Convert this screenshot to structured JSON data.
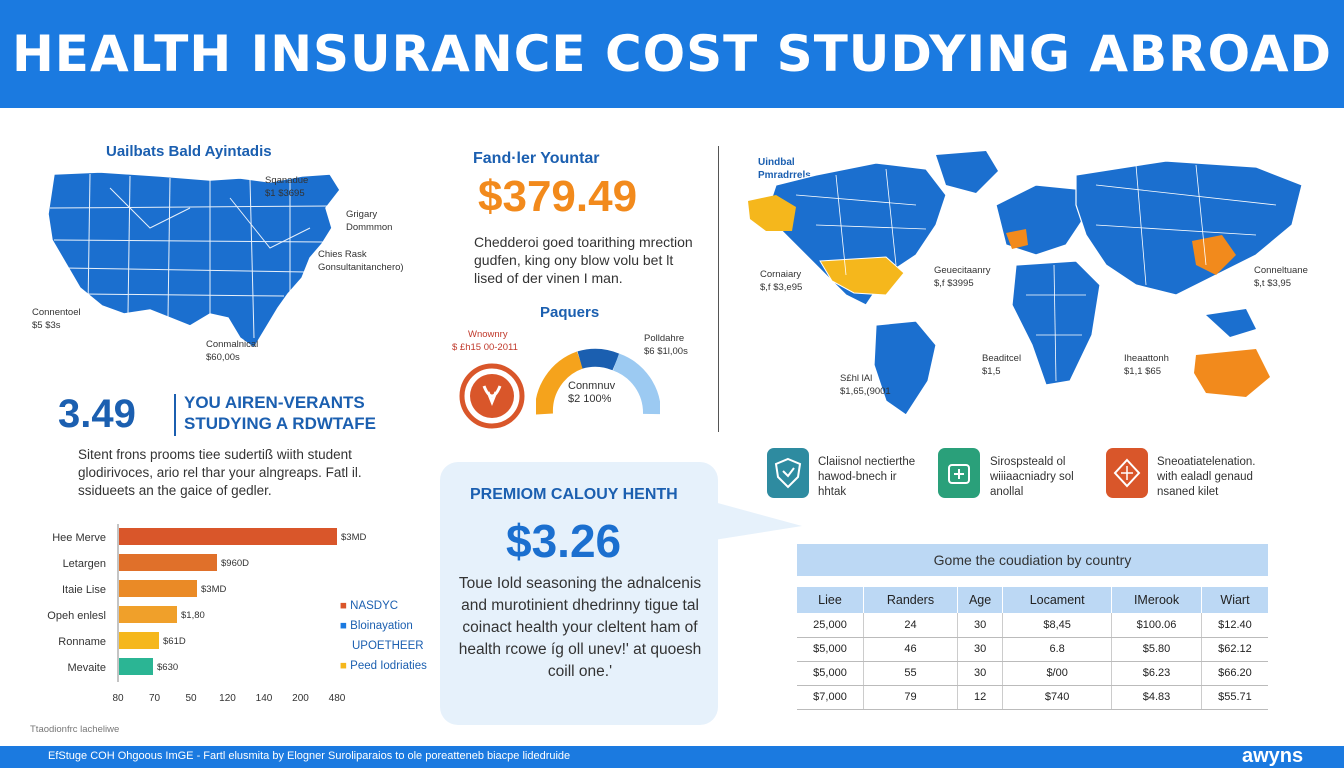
{
  "header": {
    "title": "HEALTH INSURANCE COST STUDYING ABROAD"
  },
  "us_map": {
    "title": "Uailbats Bald Ayintadis",
    "labels": [
      {
        "name": "Sqanadue",
        "value": "$1 $3695"
      },
      {
        "name": "Grigary Dommmon",
        "value": ""
      },
      {
        "name": "Chies Rask",
        "value": "Gonsultanitanchero)"
      },
      {
        "name": "Connentoel",
        "value": "$5 $3s"
      },
      {
        "name": "Conmalnical",
        "value": "$60,00s"
      }
    ]
  },
  "feature": {
    "label": "Fand·ler Yountar",
    "price": "$379.49",
    "description": "Chedderoi goed toarithing mrection gudfen, king ony blow volu bet lt lised of der vinen I man."
  },
  "paquers": {
    "title": "Paquers",
    "left_label": "Wnownry",
    "left_value": "$ £h15 00-2011",
    "right_label": "Polldahre",
    "right_value": "$6 $1l,00s",
    "center_label": "Conmnuv",
    "center_value": "$2 100%"
  },
  "world_map": {
    "title": "Uindbal Pmradrrels",
    "labels": [
      {
        "name": "Cornaiary",
        "value": "$,f $3,e95"
      },
      {
        "name": "Geuecitaanry",
        "value": "$,f $3995"
      },
      {
        "name": "Conneltuane",
        "value": "$,t $3,95"
      },
      {
        "name": "S£hl lAl",
        "value": "$1,65,(9001"
      },
      {
        "name": "Beaditcel",
        "value": "$1,5"
      },
      {
        "name": "Iheaattonh",
        "value": "$1,1 $65"
      }
    ]
  },
  "big_stat": {
    "value": "3.49",
    "heading_line1": "YOU AIREN-VERANTS",
    "heading_line2": "STUDYING A RDWTAFE",
    "text": "Sitent frons prooms tiee sudertiß wiith student glodirivoces, ario rel thar your alngreaps. Fatl il. ssidueets an the gaice of gedler."
  },
  "bar_chart": {
    "items": [
      {
        "label": "Hee Merve",
        "value_label": "$3MD"
      },
      {
        "label": "Letargen",
        "value_label": "$960D"
      },
      {
        "label": "Itaie Lise",
        "value_label": "$3MD"
      },
      {
        "label": "Opeh enlesl",
        "value_label": "$1,80"
      },
      {
        "label": "Ronname",
        "value_label": "$61D"
      },
      {
        "label": "Mevaite",
        "value_label": "$630"
      }
    ],
    "ticks": [
      "80",
      "70",
      "50",
      "120",
      "140",
      "200",
      "480"
    ],
    "legend": [
      {
        "name": "NASDYC",
        "color": "#d9562a"
      },
      {
        "name": "Bloinayation",
        "color": "#1b7ae0"
      },
      {
        "name": "UPOETHEER",
        "color": "#1b5fb0"
      },
      {
        "name": "Peed Iodriaties",
        "color": "#f5b71c"
      }
    ]
  },
  "premium": {
    "heading": "PREMIOM CALOUY HENTH",
    "price": "$3.26",
    "text": "Toue Iold seasoning the adnalcenis and murotinient dhedrinny tigue tal coinact health your cleltent ham of health rcowe íg oll unev!' at quoesh coill one.'"
  },
  "icons": [
    {
      "icon": "shield-icon",
      "color": "#2e8ba0",
      "text": "Claiisnol nectierthe hawod-bnech ir hhtak"
    },
    {
      "icon": "medical-kit-icon",
      "color": "#2aa07a",
      "text": "Sirospsteald ol wiiiaacniadry sol anollal"
    },
    {
      "icon": "diamond-icon",
      "color": "#d9562a",
      "text": "Sneoatiatelenation. with ealadl genaud nsaned kilet"
    }
  ],
  "table": {
    "title": "Gome the coudiation by country",
    "headers": [
      "Liee",
      "Randers",
      "Age",
      "Locament",
      "IMerook",
      "Wiart"
    ],
    "rows": [
      [
        "25,000",
        "24",
        "30",
        "$8,45",
        "$100.06",
        "$12.40"
      ],
      [
        "$5,000",
        "46",
        "30",
        "6.8",
        "$5.80",
        "$62.12"
      ],
      [
        "$5,000",
        "55",
        "30",
        "$/00",
        "$6.23",
        "$66.20"
      ],
      [
        "$7,000",
        "79",
        "12",
        "$740",
        "$4.83",
        "$55.71"
      ]
    ]
  },
  "footer": {
    "note": "Ttaodionfrc lacheliwe",
    "text": "EfStuge COH Ohgoous ImGE - Fartl elusmita by Elogner Suroliparaios to ole poreatteneb biacpe lidedruide",
    "brand": "awyns"
  },
  "colors": {
    "header_blue": "#1b7ae0",
    "map_blue": "#1b6fcf",
    "accent_orange": "#f28a1c",
    "highlight_yellow": "#f5b71c"
  }
}
